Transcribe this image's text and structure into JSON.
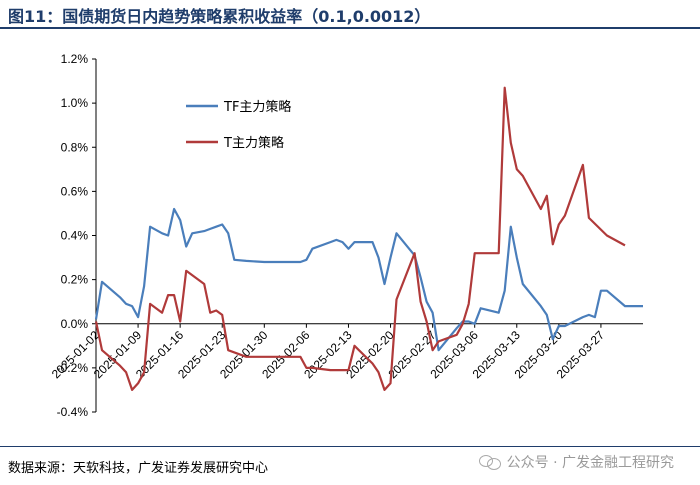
{
  "title": "图11：国债期货日内趋势策略累积收益率（0.1,0.0012）",
  "source": "数据来源：天软科技，广发证券发展研究中心",
  "watermark": "公众号 · 广发金融工程研究",
  "colors": {
    "title": "#1f3d6b",
    "series_tf": "#4a7ebb",
    "series_t": "#b03a3a",
    "axis": "#000000"
  },
  "chart_data": {
    "type": "line",
    "title": "国债期货日内趋势策略累积收益率（0.1,0.0012）",
    "xlabel": "",
    "ylabel": "",
    "ylim": [
      -0.4,
      1.2
    ],
    "yticks": [
      -0.4,
      -0.2,
      0.0,
      0.2,
      0.4,
      0.6,
      0.8,
      1.0,
      1.2
    ],
    "ytick_labels": [
      "-0.4%",
      "-0.2%",
      "0.0%",
      "0.2%",
      "0.4%",
      "0.6%",
      "0.8%",
      "1.0%",
      "1.2%"
    ],
    "x_ticks": [
      "2025-01-02",
      "2025-01-09",
      "2025-01-16",
      "2025-01-23",
      "2025-01-30",
      "2025-02-06",
      "2025-02-13",
      "2025-02-20",
      "2025-02-27",
      "2025-03-06",
      "2025-03-13",
      "2025-03-20",
      "2025-03-27"
    ],
    "grid": false,
    "legend": "upper-left",
    "series": [
      {
        "name": "TF主力策略",
        "color": "#4a7ebb",
        "values": [
          [
            "2025-01-02",
            0.02
          ],
          [
            "2025-01-03",
            0.19
          ],
          [
            "2025-01-06",
            0.12
          ],
          [
            "2025-01-07",
            0.09
          ],
          [
            "2025-01-08",
            0.08
          ],
          [
            "2025-01-09",
            0.03
          ],
          [
            "2025-01-10",
            0.17
          ],
          [
            "2025-01-11",
            0.44
          ],
          [
            "2025-01-13",
            0.41
          ],
          [
            "2025-01-14",
            0.4
          ],
          [
            "2025-01-15",
            0.52
          ],
          [
            "2025-01-16",
            0.47
          ],
          [
            "2025-01-17",
            0.35
          ],
          [
            "2025-01-18",
            0.41
          ],
          [
            "2025-01-20",
            0.42
          ],
          [
            "2025-01-21",
            0.43
          ],
          [
            "2025-01-22",
            0.44
          ],
          [
            "2025-01-23",
            0.45
          ],
          [
            "2025-01-24",
            0.41
          ],
          [
            "2025-01-25",
            0.29
          ],
          [
            "2025-01-27",
            0.285
          ],
          [
            "2025-01-30",
            0.28
          ],
          [
            "2025-02-03",
            0.28
          ],
          [
            "2025-02-05",
            0.28
          ],
          [
            "2025-02-06",
            0.29
          ],
          [
            "2025-02-07",
            0.34
          ],
          [
            "2025-02-10",
            0.37
          ],
          [
            "2025-02-11",
            0.38
          ],
          [
            "2025-02-12",
            0.37
          ],
          [
            "2025-02-13",
            0.34
          ],
          [
            "2025-02-14",
            0.37
          ],
          [
            "2025-02-17",
            0.37
          ],
          [
            "2025-02-18",
            0.3
          ],
          [
            "2025-02-19",
            0.18
          ],
          [
            "2025-02-20",
            0.3
          ],
          [
            "2025-02-21",
            0.41
          ],
          [
            "2025-02-24",
            0.31
          ],
          [
            "2025-02-25",
            0.21
          ],
          [
            "2025-02-26",
            0.1
          ],
          [
            "2025-02-27",
            0.05
          ],
          [
            "2025-02-28",
            -0.12
          ],
          [
            "2025-03-03",
            -0.02
          ],
          [
            "2025-03-04",
            0.01
          ],
          [
            "2025-03-05",
            0.01
          ],
          [
            "2025-03-06",
            0.0
          ],
          [
            "2025-03-07",
            0.07
          ],
          [
            "2025-03-10",
            0.05
          ],
          [
            "2025-03-11",
            0.15
          ],
          [
            "2025-03-12",
            0.44
          ],
          [
            "2025-03-13",
            0.3
          ],
          [
            "2025-03-14",
            0.18
          ],
          [
            "2025-03-17",
            0.08
          ],
          [
            "2025-03-18",
            0.04
          ],
          [
            "2025-03-19",
            -0.07
          ],
          [
            "2025-03-20",
            -0.01
          ],
          [
            "2025-03-21",
            -0.01
          ],
          [
            "2025-03-24",
            0.03
          ],
          [
            "2025-03-25",
            0.04
          ],
          [
            "2025-03-26",
            0.03
          ],
          [
            "2025-03-27",
            0.15
          ],
          [
            "2025-03-28",
            0.15
          ],
          [
            "2025-03-31",
            0.08
          ],
          [
            "2025-04-03",
            0.08
          ]
        ]
      },
      {
        "name": "T主力策略",
        "color": "#b03a3a",
        "values": [
          [
            "2025-01-02",
            0.01
          ],
          [
            "2025-01-03",
            -0.12
          ],
          [
            "2025-01-06",
            -0.19
          ],
          [
            "2025-01-07",
            -0.22
          ],
          [
            "2025-01-08",
            -0.3
          ],
          [
            "2025-01-09",
            -0.27
          ],
          [
            "2025-01-10",
            -0.22
          ],
          [
            "2025-01-11",
            0.09
          ],
          [
            "2025-01-13",
            0.05
          ],
          [
            "2025-01-14",
            0.13
          ],
          [
            "2025-01-15",
            0.13
          ],
          [
            "2025-01-16",
            0.01
          ],
          [
            "2025-01-17",
            0.24
          ],
          [
            "2025-01-20",
            0.18
          ],
          [
            "2025-01-21",
            0.05
          ],
          [
            "2025-01-22",
            0.06
          ],
          [
            "2025-01-23",
            0.04
          ],
          [
            "2025-01-24",
            -0.12
          ],
          [
            "2025-01-27",
            -0.15
          ],
          [
            "2025-01-30",
            -0.15
          ],
          [
            "2025-02-03",
            -0.15
          ],
          [
            "2025-02-05",
            -0.15
          ],
          [
            "2025-02-06",
            -0.2
          ],
          [
            "2025-02-07",
            -0.2
          ],
          [
            "2025-02-10",
            -0.21
          ],
          [
            "2025-02-11",
            -0.21
          ],
          [
            "2025-02-12",
            -0.21
          ],
          [
            "2025-02-13",
            -0.21
          ],
          [
            "2025-02-14",
            -0.1
          ],
          [
            "2025-02-17",
            -0.18
          ],
          [
            "2025-02-18",
            -0.22
          ],
          [
            "2025-02-19",
            -0.3
          ],
          [
            "2025-02-20",
            -0.27
          ],
          [
            "2025-02-21",
            0.11
          ],
          [
            "2025-02-24",
            0.32
          ],
          [
            "2025-02-25",
            0.1
          ],
          [
            "2025-02-26",
            0.01
          ],
          [
            "2025-02-27",
            -0.12
          ],
          [
            "2025-02-28",
            -0.08
          ],
          [
            "2025-03-03",
            -0.05
          ],
          [
            "2025-03-04",
            0.0
          ],
          [
            "2025-03-05",
            0.09
          ],
          [
            "2025-03-06",
            0.32
          ],
          [
            "2025-03-07",
            0.32
          ],
          [
            "2025-03-10",
            0.32
          ],
          [
            "2025-03-11",
            1.07
          ],
          [
            "2025-03-12",
            0.82
          ],
          [
            "2025-03-13",
            0.7
          ],
          [
            "2025-03-14",
            0.67
          ],
          [
            "2025-03-17",
            0.52
          ],
          [
            "2025-03-18",
            0.58
          ],
          [
            "2025-03-19",
            0.36
          ],
          [
            "2025-03-20",
            0.45
          ],
          [
            "2025-03-21",
            0.49
          ],
          [
            "2025-03-24",
            0.72
          ],
          [
            "2025-03-25",
            0.48
          ],
          [
            "2025-03-28",
            0.4
          ],
          [
            "2025-03-31",
            0.355
          ]
        ]
      }
    ]
  }
}
